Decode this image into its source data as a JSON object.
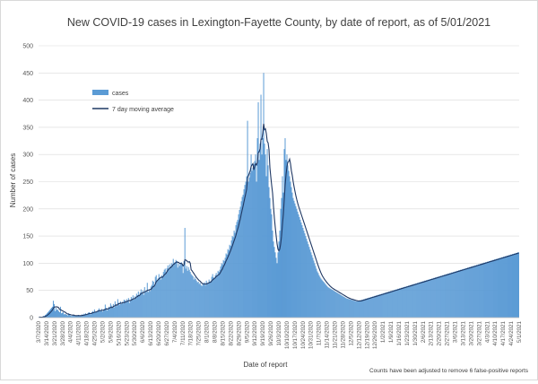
{
  "chart_data": {
    "type": "bar",
    "title": "New COVID-19 cases in Lexington-Fayette County, by date of report, as of 5/01/2021",
    "xlabel": "Date of report",
    "ylabel": "Number of cases",
    "ylim": [
      0,
      500
    ],
    "yticks": [
      0,
      50,
      100,
      150,
      200,
      250,
      300,
      350,
      400,
      450,
      500
    ],
    "grid": true,
    "legend_position": "top-left",
    "note": "Counts have been adjusted to remove 6 false-positive reports",
    "colors": {
      "bar": "#5b9bd5",
      "line": "#1f3864",
      "grid": "#d9d9d9",
      "axis_text": "#595959"
    },
    "x_start": "3/7/2020",
    "x_end": "5/1/2021",
    "xtick_labels": [
      "3/7/2020",
      "3/14/2020",
      "3/21/2020",
      "3/28/2020",
      "4/4/2020",
      "4/11/2020",
      "4/18/2020",
      "4/25/2020",
      "5/2/2020",
      "5/9/2020",
      "5/16/2020",
      "5/23/2020",
      "5/30/2020",
      "6/6/2020",
      "6/13/2020",
      "6/20/2020",
      "6/27/2020",
      "7/4/2020",
      "7/11/2020",
      "7/18/2020",
      "7/25/2020",
      "8/1/2020",
      "8/8/2020",
      "8/15/2020",
      "8/22/2020",
      "8/29/2020",
      "9/5/2020",
      "9/12/2020",
      "9/19/2020",
      "9/26/2020",
      "10/3/2020",
      "10/10/2020",
      "10/17/2020",
      "10/24/2020",
      "10/31/2020",
      "11/7/2020",
      "11/14/2020",
      "11/21/2020",
      "11/28/2020",
      "12/5/2020",
      "12/12/2020",
      "12/19/2020",
      "12/26/2020",
      "1/2/2021",
      "1/9/2021",
      "1/16/2021",
      "1/23/2021",
      "1/30/2021",
      "2/6/2021",
      "2/13/2021",
      "2/20/2021",
      "2/27/2021",
      "3/6/2021",
      "3/13/2021",
      "3/20/2021",
      "3/27/2021",
      "4/3/2021",
      "4/10/2021",
      "4/17/2021",
      "4/24/2021",
      "5/1/2021"
    ],
    "series": [
      {
        "name": "cases",
        "kind": "bar",
        "values": [
          1,
          1,
          0,
          1,
          2,
          3,
          3,
          5,
          6,
          8,
          10,
          12,
          14,
          16,
          18,
          20,
          31,
          25,
          12,
          18,
          14,
          15,
          12,
          10,
          20,
          8,
          9,
          10,
          6,
          7,
          6,
          5,
          4,
          8,
          5,
          4,
          3,
          3,
          5,
          4,
          3,
          3,
          4,
          3,
          5,
          3,
          4,
          3,
          6,
          4,
          7,
          6,
          8,
          5,
          7,
          9,
          10,
          8,
          6,
          10,
          12,
          9,
          15,
          11,
          10,
          12,
          14,
          17,
          13,
          12,
          16,
          11,
          14,
          16,
          24,
          18,
          13,
          15,
          20,
          17,
          26,
          22,
          18,
          25,
          19,
          30,
          24,
          21,
          34,
          27,
          23,
          30,
          25,
          29,
          26,
          33,
          32,
          28,
          34,
          30,
          36,
          27,
          32,
          38,
          35,
          41,
          33,
          39,
          37,
          44,
          41,
          48,
          40,
          46,
          52,
          44,
          50,
          42,
          56,
          48,
          47,
          64,
          47,
          51,
          49,
          57,
          60,
          68,
          66,
          58,
          75,
          78,
          69,
          72,
          80,
          74,
          70,
          78,
          76,
          84,
          88,
          90,
          84,
          91,
          96,
          90,
          98,
          94,
          100,
          98,
          108,
          101,
          102,
          106,
          104,
          92,
          99,
          95,
          100,
          102,
          97,
          82,
          104,
          165,
          90,
          95,
          86,
          93,
          88,
          84,
          80,
          78,
          76,
          70,
          74,
          71,
          68,
          65,
          66,
          62,
          64,
          60,
          58,
          63,
          61,
          65,
          59,
          68,
          64,
          62,
          70,
          66,
          68,
          75,
          80,
          74,
          72,
          78,
          82,
          76,
          86,
          84,
          88,
          94,
          100,
          98,
          106,
          104,
          110,
          118,
          116,
          126,
          124,
          134,
          132,
          142,
          150,
          148,
          160,
          156,
          170,
          176,
          180,
          190,
          198,
          204,
          214,
          222,
          226,
          236,
          244,
          250,
          260,
          362,
          250,
          258,
          266,
          300,
          270,
          276,
          282,
          288,
          300,
          250,
          330,
          396,
          290,
          320,
          410,
          300,
          330,
          450,
          320,
          300,
          260,
          310,
          280,
          240,
          220,
          200,
          190,
          160,
          140,
          130,
          120,
          110,
          100,
          120,
          140,
          160,
          200,
          220,
          260,
          230,
          310,
          330,
          290,
          300,
          280,
          270,
          260,
          250,
          240,
          230,
          220,
          215,
          210,
          205,
          200,
          195,
          190,
          185,
          180,
          175,
          170,
          165,
          160,
          155,
          150,
          145,
          140,
          135,
          130,
          125,
          120,
          115,
          110,
          105,
          100,
          95,
          90,
          85,
          82,
          78,
          75,
          72,
          70,
          68,
          66,
          64,
          62,
          60,
          58,
          56,
          55,
          54,
          53,
          52,
          51,
          50,
          49,
          48,
          47,
          46,
          45,
          44,
          43,
          42,
          41,
          40,
          39,
          38,
          37,
          36,
          35,
          35,
          34,
          34,
          33,
          33,
          32,
          32,
          31,
          31,
          30,
          30,
          30,
          31,
          31,
          32,
          32,
          33,
          33,
          34,
          34,
          35,
          35,
          36,
          36,
          37,
          37,
          38,
          38,
          39,
          39,
          40,
          40,
          41,
          41,
          42,
          42,
          43,
          43,
          44,
          44,
          45,
          45,
          46,
          46,
          47,
          47,
          48,
          48,
          49,
          49,
          50,
          50,
          51,
          51,
          52,
          52,
          53,
          53,
          54,
          54,
          55,
          55,
          56,
          56,
          57,
          57,
          58,
          58,
          59,
          59,
          60,
          60,
          61,
          61,
          62,
          62,
          63,
          63,
          64,
          64,
          65,
          65,
          66,
          66,
          67,
          67,
          68,
          68,
          69,
          69,
          70,
          70,
          71,
          71,
          72,
          72,
          73,
          73,
          74,
          74,
          75,
          75,
          76,
          76,
          77,
          77,
          78,
          78,
          79,
          79,
          80,
          80,
          81,
          81,
          82,
          82,
          83,
          83,
          84,
          84,
          85,
          85,
          86,
          86,
          87,
          87,
          88,
          88,
          89,
          89,
          90,
          90,
          91,
          91,
          92,
          92,
          93,
          93,
          94,
          94,
          95,
          95,
          96,
          96,
          97,
          97,
          98,
          98,
          99,
          99,
          100,
          100,
          101,
          101,
          102,
          102,
          103,
          103,
          104,
          104,
          105,
          105,
          106,
          106,
          107,
          107,
          108,
          108,
          109,
          109,
          110,
          110,
          111,
          111,
          112,
          112,
          113,
          113,
          114,
          114,
          115,
          115,
          116,
          116,
          117,
          117,
          118,
          118,
          119,
          119,
          120,
          120
        ]
      },
      {
        "name": "7 day moving average",
        "kind": "line",
        "values": []
      }
    ]
  }
}
